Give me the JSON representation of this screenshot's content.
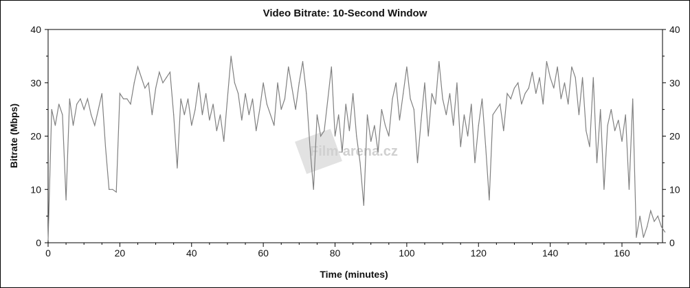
{
  "chart_data": {
    "type": "line",
    "title": "Video Bitrate: 10-Second Window",
    "xlabel": "Time (minutes)",
    "ylabel": "Bitrate (Mbps)",
    "xlim": [
      0,
      172
    ],
    "ylim": [
      0,
      40
    ],
    "xticks": [
      0,
      20,
      40,
      60,
      80,
      100,
      120,
      140,
      160
    ],
    "yticks": [
      0,
      10,
      20,
      30,
      40
    ],
    "right_axis": true,
    "grid": false,
    "line_color": "#7f7f7f",
    "x": [
      0,
      1,
      2,
      3,
      4,
      5,
      6,
      7,
      8,
      9,
      10,
      11,
      12,
      13,
      14,
      15,
      16,
      17,
      18,
      19,
      20,
      21,
      22,
      23,
      24,
      25,
      26,
      27,
      28,
      29,
      30,
      31,
      32,
      33,
      34,
      35,
      36,
      37,
      38,
      39,
      40,
      41,
      42,
      43,
      44,
      45,
      46,
      47,
      48,
      49,
      50,
      51,
      52,
      53,
      54,
      55,
      56,
      57,
      58,
      59,
      60,
      61,
      62,
      63,
      64,
      65,
      66,
      67,
      68,
      69,
      70,
      71,
      72,
      73,
      74,
      75,
      76,
      77,
      78,
      79,
      80,
      81,
      82,
      83,
      84,
      85,
      86,
      87,
      88,
      89,
      90,
      91,
      92,
      93,
      94,
      95,
      96,
      97,
      98,
      99,
      100,
      101,
      102,
      103,
      104,
      105,
      106,
      107,
      108,
      109,
      110,
      111,
      112,
      113,
      114,
      115,
      116,
      117,
      118,
      119,
      120,
      121,
      122,
      123,
      124,
      125,
      126,
      127,
      128,
      129,
      130,
      131,
      132,
      133,
      134,
      135,
      136,
      137,
      138,
      139,
      140,
      141,
      142,
      143,
      144,
      145,
      146,
      147,
      148,
      149,
      150,
      151,
      152,
      153,
      154,
      155,
      156,
      157,
      158,
      159,
      160,
      161,
      162,
      163,
      164,
      165,
      166,
      167,
      168,
      169,
      170,
      171,
      172
    ],
    "values": [
      0.5,
      25,
      22,
      26,
      24,
      8,
      27,
      22,
      26,
      27,
      25,
      27,
      24,
      22,
      25,
      28,
      18,
      10,
      10,
      9.5,
      28,
      27,
      27,
      26,
      30,
      33,
      31,
      29,
      30,
      24,
      29,
      32,
      30,
      31,
      32,
      24,
      14,
      27,
      24,
      27,
      22,
      25,
      30,
      24,
      28,
      23,
      26,
      21,
      24,
      19,
      27,
      35,
      30,
      28,
      23,
      28,
      24,
      27,
      21,
      25,
      30,
      26,
      24,
      22,
      30,
      25,
      27,
      33,
      29,
      25,
      30,
      34,
      28,
      18,
      10,
      24,
      20,
      21,
      27,
      33,
      20,
      24,
      17,
      26,
      21,
      28,
      20,
      15,
      7,
      24,
      19,
      22,
      17,
      25,
      22,
      20,
      27,
      30,
      23,
      28,
      33,
      27,
      25,
      15,
      23,
      30,
      20,
      28,
      26,
      34,
      27,
      24,
      28,
      22,
      30,
      18,
      24,
      20,
      26,
      15,
      22,
      27,
      18,
      8,
      24,
      25,
      26,
      21,
      28,
      27,
      29,
      30,
      26,
      28,
      29,
      32,
      28,
      31,
      26,
      34,
      31,
      29,
      33,
      27,
      30,
      26,
      33,
      31,
      24,
      31,
      21,
      18,
      31,
      15,
      25,
      10,
      22,
      25,
      21,
      23,
      19,
      24,
      10,
      27,
      1,
      5,
      1,
      3,
      6,
      4,
      5,
      3,
      2
    ]
  },
  "watermark": "Film-arena.cz"
}
